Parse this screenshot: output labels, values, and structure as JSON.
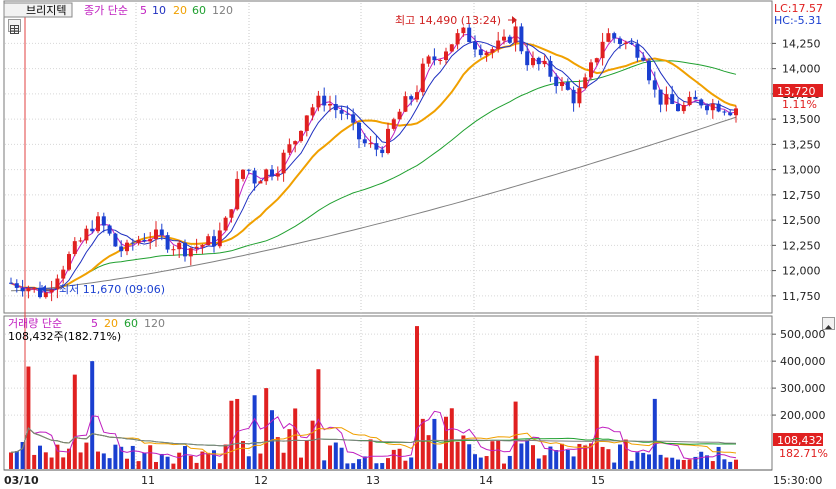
{
  "stock_name": "브리지텍",
  "price_legend": {
    "label": "종가 단순",
    "periods": [
      "5",
      "10",
      "20",
      "60",
      "120"
    ]
  },
  "volume_legend": {
    "label": "거래량 단순",
    "periods": [
      "5",
      "20",
      "60",
      "120"
    ]
  },
  "volume_readout": "108,432주(182.71%)",
  "lc_label": "LC:17.57",
  "hc_label": "HC:-5.31",
  "current_price": "13,720",
  "current_change": "1.11%",
  "current_volume": "108,432",
  "current_volume_pct": "182.71%",
  "high_annotation": "최고 14,490 (13:24)",
  "low_annotation": "최저 11,670 (09:06)",
  "price_axis_labels": [
    "14,250",
    "14,000",
    "13,750",
    "13,500",
    "13,250",
    "13,000",
    "12,750",
    "12,500",
    "12,250",
    "12,000",
    "11,750"
  ],
  "volume_axis_labels": [
    "500,000",
    "400,000",
    "300,000",
    "200,000"
  ],
  "x_axis_labels": [
    "03/10",
    "11",
    "12",
    "13",
    "14",
    "15",
    "15:30:00"
  ],
  "colors": {
    "up": "#e02020",
    "down": "#1a3fd0",
    "ma5": "#c020c0",
    "ma10": "#2030c0",
    "ma20": "#f0a000",
    "ma60": "#20a030",
    "ma120": "#808080",
    "badge_price": "#e02020",
    "annotation_high": "#d02020",
    "annotation_low": "#1a3fd0"
  },
  "chart_data": {
    "type": "candlestick",
    "interval": "intraday",
    "ylim": [
      11600,
      14650
    ],
    "volume_ylim": [
      0,
      560000
    ],
    "x_labels": [
      "03/10",
      "11",
      "12",
      "13",
      "14",
      "15"
    ],
    "high": {
      "value": 14490,
      "time": "13:24"
    },
    "low": {
      "value": 11670,
      "time": "09:06"
    },
    "last_close": 13720
  }
}
